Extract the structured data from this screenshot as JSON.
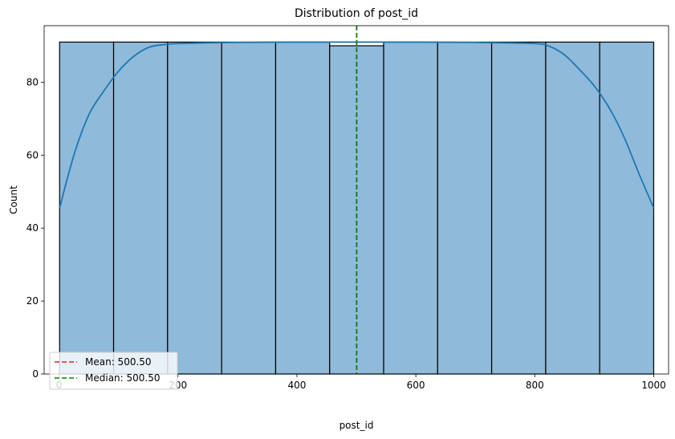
{
  "chart_data": {
    "type": "bar",
    "title": "Distribution of post_id",
    "xlabel": "post_id",
    "ylabel": "Count",
    "xlim": [
      -25,
      1025
    ],
    "ylim": [
      0,
      95.5
    ],
    "xticks": [
      0,
      200,
      400,
      600,
      800,
      1000
    ],
    "yticks": [
      0,
      20,
      40,
      60,
      80
    ],
    "bins": [
      {
        "start": 1,
        "end": 91.8,
        "count": 91
      },
      {
        "start": 91.8,
        "end": 182.6,
        "count": 91
      },
      {
        "start": 182.6,
        "end": 273.5,
        "count": 91
      },
      {
        "start": 273.5,
        "end": 364.3,
        "count": 91
      },
      {
        "start": 364.3,
        "end": 455.1,
        "count": 91
      },
      {
        "start": 455.1,
        "end": 545.9,
        "count": 90
      },
      {
        "start": 545.9,
        "end": 636.7,
        "count": 91
      },
      {
        "start": 636.7,
        "end": 727.5,
        "count": 91
      },
      {
        "start": 727.5,
        "end": 818.4,
        "count": 91
      },
      {
        "start": 818.4,
        "end": 909.2,
        "count": 91
      },
      {
        "start": 909.2,
        "end": 1000,
        "count": 91
      }
    ],
    "kde": {
      "x": [
        1,
        25,
        50,
        75,
        100,
        125,
        150,
        175,
        200,
        250,
        300,
        400,
        500,
        600,
        700,
        800,
        825,
        850,
        875,
        900,
        925,
        950,
        975,
        1000
      ],
      "y": [
        45.5,
        60,
        71,
        77.5,
        83,
        87,
        89.5,
        90.3,
        90.6,
        90.8,
        90.9,
        91,
        91,
        91,
        90.9,
        90.6,
        89.8,
        87.5,
        83.5,
        79,
        73,
        65,
        55,
        45.5
      ]
    },
    "lines": [
      {
        "name": "Mean",
        "value": 500.5,
        "label": "Mean: 500.50",
        "color": "#d62728",
        "style": "dashed"
      },
      {
        "name": "Median",
        "value": 500.5,
        "label": "Median: 500.50",
        "color": "#008000",
        "style": "dashed"
      }
    ],
    "bar_color": "#8fbad9",
    "bar_edge_color": "#000000",
    "kde_color": "#1f77b4",
    "grid": false,
    "legend_position": "lower-left"
  }
}
